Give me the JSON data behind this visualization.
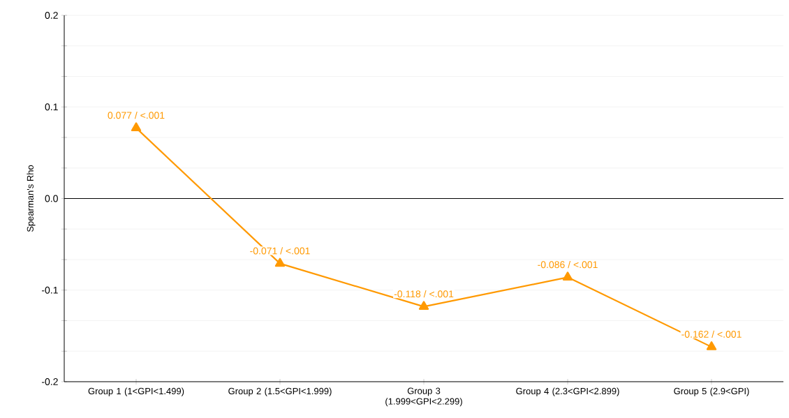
{
  "chart_data": {
    "type": "line",
    "ylabel": "Spearman's Rho",
    "categories": [
      "Group 1 (1<GPI<1.499)",
      "Group 2 (1.5<GPI<1.999)",
      "Group 3 (1.999<GPI<2.299)",
      "Group 4 (2.3<GPI<2.899)",
      "Group 5 (2.9<GPI)"
    ],
    "series": [
      {
        "color": "#ff9900",
        "values": [
          0.077,
          -0.071,
          -0.118,
          -0.086,
          -0.162
        ],
        "value_labels": [
          "0.077 / <.001",
          "-0.071 / <.001",
          "-0.118 / <.001",
          "-0.086 / <.001",
          "-0.162 / <.001"
        ]
      }
    ],
    "ylim": [
      -0.2,
      0.2
    ],
    "yticks": [
      -0.2,
      {
        "value": -0.1667,
        "label": null
      },
      {
        "value": -0.1333,
        "label": null
      },
      -0.1,
      {
        "value": -0.0667,
        "label": null
      },
      {
        "value": -0.0333,
        "label": null
      },
      {
        "value": 0,
        "label": "0.0"
      },
      {
        "value": 0.0333,
        "label": null
      },
      {
        "value": 0.0667,
        "label": null
      },
      0.1,
      {
        "value": 0.1333,
        "label": null
      },
      {
        "value": 0.1667,
        "label": null
      },
      0.2
    ],
    "grid": "y",
    "marker": "triangle",
    "line_style": "solid",
    "ref_lines": [
      {
        "axis": "y",
        "value": 0,
        "color": "#000000"
      }
    ]
  }
}
